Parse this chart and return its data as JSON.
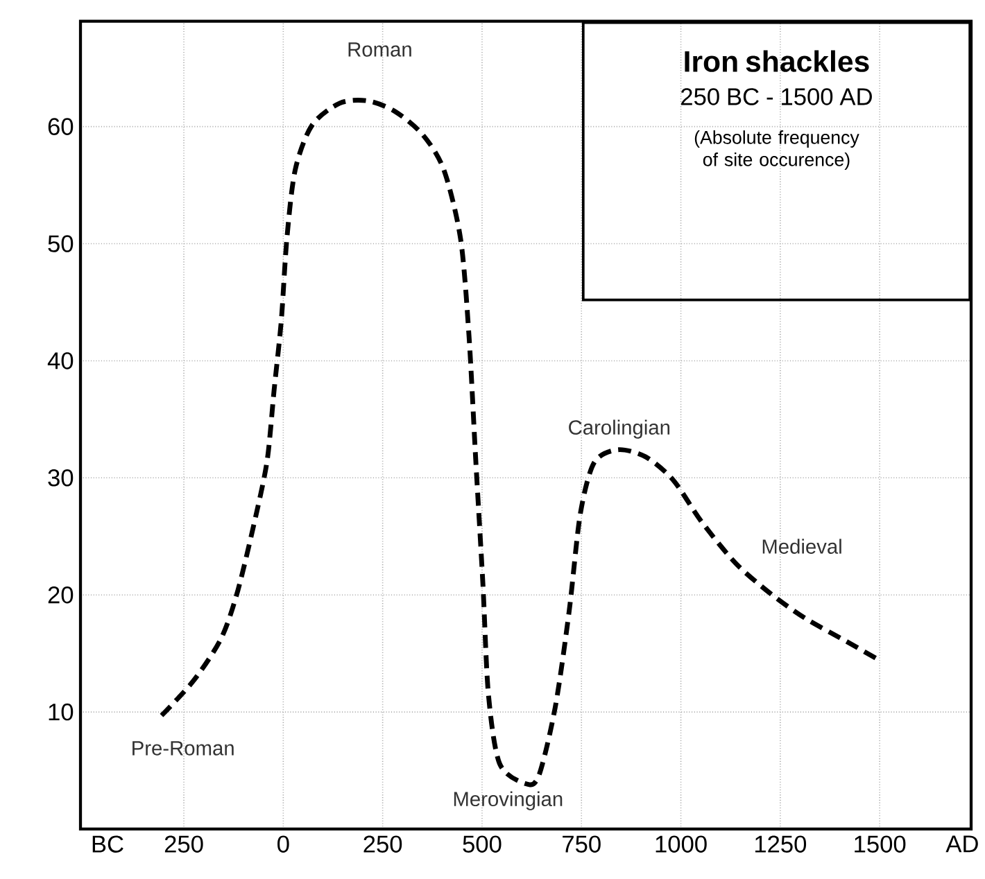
{
  "chart_data": {
    "type": "line",
    "title": "Iron shackles",
    "subtitle": "250 BC - 1500 AD",
    "annotations": [
      "(Absolute frequency\nof site occurence)",
      "Roman",
      "Pre-Roman",
      "Merovingian",
      "Carolingian",
      "Medieval"
    ],
    "series": [
      {
        "color": "#000000",
        "line_style": "dashed",
        "x": [
          -306,
          -225,
          -156,
          -114,
          -68,
          -40,
          -23,
          -5,
          9,
          30,
          72,
          142,
          212,
          281,
          351,
          404,
          446,
          467,
          484,
          502,
          516,
          544,
          607,
          642,
          684,
          719,
          747,
          782,
          841,
          911,
          981,
          1051,
          1138,
          1226,
          1313,
          1418,
          1495
        ],
        "values": [
          9.7,
          12.7,
          16.3,
          20.4,
          26.9,
          31.6,
          37.5,
          43.4,
          50.4,
          56.3,
          60.1,
          62.0,
          62.2,
          61.3,
          59.3,
          56.3,
          50.4,
          42.2,
          31.6,
          21.0,
          11.5,
          5.6,
          3.9,
          4.5,
          10.4,
          18.6,
          26.9,
          31.3,
          32.4,
          31.8,
          29.8,
          26.3,
          22.7,
          20.1,
          18.0,
          16.0,
          14.5
        ]
      }
    ],
    "xlim": [
      -510,
      1730
    ],
    "ylim": [
      0,
      69
    ],
    "xticks": [
      {
        "value": -442,
        "label": "BC"
      },
      {
        "value": -250,
        "label": "250"
      },
      {
        "value": 0,
        "label": "0"
      },
      {
        "value": 250,
        "label": "250"
      },
      {
        "value": 500,
        "label": "500"
      },
      {
        "value": 750,
        "label": "750"
      },
      {
        "value": 1000,
        "label": "1000"
      },
      {
        "value": 1250,
        "label": "1250"
      },
      {
        "value": 1500,
        "label": "1500"
      },
      {
        "value": 1708,
        "label": "AD"
      }
    ],
    "yticks": [
      10,
      20,
      30,
      40,
      50,
      60
    ],
    "grid": true,
    "marker": "none"
  }
}
